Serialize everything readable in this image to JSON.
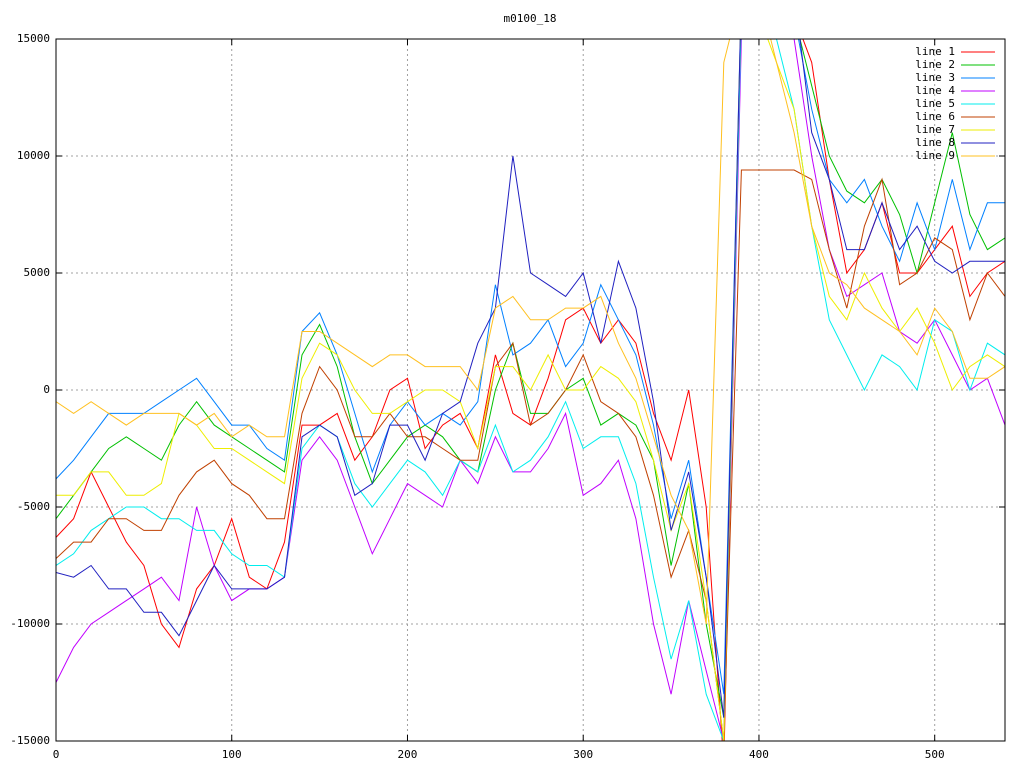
{
  "chart_data": {
    "type": "line",
    "title": "m0100_18",
    "x": [
      0,
      10,
      20,
      30,
      40,
      50,
      60,
      70,
      80,
      90,
      100,
      110,
      120,
      130,
      140,
      150,
      160,
      170,
      180,
      190,
      200,
      210,
      220,
      230,
      240,
      250,
      260,
      270,
      280,
      290,
      300,
      310,
      320,
      330,
      340,
      350,
      360,
      370,
      380,
      390,
      400,
      410,
      420,
      430,
      440,
      450,
      460,
      470,
      480,
      490,
      500,
      510,
      520,
      530,
      540
    ],
    "xlim": [
      0,
      540
    ],
    "xticks": [
      0,
      100,
      200,
      300,
      400,
      500
    ],
    "ylim": [
      -15000,
      15000
    ],
    "yticks": [
      -15000,
      -10000,
      -5000,
      0,
      5000,
      10000,
      15000
    ],
    "grid": true,
    "legend": "top-right",
    "series": [
      {
        "name": "line 1",
        "color": "#ff0000",
        "values": [
          -6300,
          -5500,
          -3500,
          -5000,
          -6500,
          -7500,
          -10000,
          -11000,
          -8500,
          -7500,
          -5500,
          -8000,
          -8500,
          -6500,
          -1500,
          -1500,
          -1000,
          -3000,
          -2000,
          0,
          500,
          -2500,
          -1500,
          -1000,
          -2500,
          1500,
          -1000,
          -1500,
          500,
          3000,
          3500,
          2000,
          3000,
          2000,
          -1000,
          -3000,
          0,
          -5000,
          -16000,
          16000,
          17000,
          16000,
          16000,
          14000,
          9000,
          5000,
          6000,
          8000,
          5000,
          5000,
          6000,
          7000,
          4000,
          5000,
          5500
        ]
      },
      {
        "name": "line 2",
        "color": "#00c000",
        "values": [
          -5500,
          -4500,
          -3500,
          -2500,
          -2000,
          -2500,
          -3000,
          -1500,
          -500,
          -1500,
          -2000,
          -2500,
          -3000,
          -3500,
          1500,
          2800,
          1000,
          -2000,
          -4000,
          -3000,
          -2000,
          -1500,
          -2000,
          -3000,
          -3500,
          0,
          2000,
          -1000,
          -1000,
          0,
          500,
          -1500,
          -1000,
          -1500,
          -3000,
          -7500,
          -4000,
          -10000,
          -14000,
          16000,
          17000,
          16500,
          16000,
          13000,
          10000,
          8500,
          8000,
          9000,
          7500,
          5000,
          8000,
          11000,
          7500,
          6000,
          6500
        ]
      },
      {
        "name": "line 3",
        "color": "#0080ff",
        "values": [
          -3800,
          -3000,
          -2000,
          -1000,
          -1000,
          -1000,
          -500,
          0,
          500,
          -500,
          -1500,
          -1500,
          -2500,
          -3000,
          2500,
          3300,
          1500,
          -1000,
          -3500,
          -1500,
          -500,
          -1500,
          -1000,
          -1500,
          -500,
          4500,
          1500,
          2000,
          3000,
          1000,
          2000,
          4500,
          3000,
          1500,
          -1500,
          -5500,
          -3000,
          -8000,
          -13000,
          17000,
          18000,
          17000,
          16000,
          12000,
          9000,
          8000,
          9000,
          7000,
          5500,
          8000,
          6000,
          9000,
          6000,
          8000,
          8000
        ]
      },
      {
        "name": "line 4",
        "color": "#c000ff",
        "values": [
          -12500,
          -11000,
          -10000,
          -9500,
          -9000,
          -8500,
          -8000,
          -9000,
          -5000,
          -7500,
          -9000,
          -8500,
          -8500,
          -8000,
          -3000,
          -2000,
          -3000,
          -5000,
          -7000,
          -5500,
          -4000,
          -4500,
          -5000,
          -3000,
          -4000,
          -2000,
          -3500,
          -3500,
          -2500,
          -1000,
          -4500,
          -4000,
          -3000,
          -5500,
          -10000,
          -13000,
          -9000,
          -12000,
          -15000,
          15000,
          17000,
          16500,
          15000,
          10000,
          6000,
          4000,
          4500,
          5000,
          2500,
          2000,
          3000,
          1500,
          0,
          500,
          -1500
        ]
      },
      {
        "name": "line 5",
        "color": "#00eeee",
        "values": [
          -7500,
          -7000,
          -6000,
          -5500,
          -5000,
          -5000,
          -5500,
          -5500,
          -6000,
          -6000,
          -7000,
          -7500,
          -7500,
          -8000,
          -2500,
          -1500,
          -2000,
          -4000,
          -5000,
          -4000,
          -3000,
          -3500,
          -4500,
          -3000,
          -3500,
          -1500,
          -3500,
          -3000,
          -2000,
          -500,
          -2500,
          -2000,
          -2000,
          -4000,
          -8000,
          -11500,
          -9000,
          -13000,
          -15000,
          16000,
          16000,
          15000,
          12000,
          7000,
          3000,
          1500,
          0,
          1500,
          1000,
          0,
          3000,
          2500,
          0,
          2000,
          1500
        ]
      },
      {
        "name": "line 6",
        "color": "#c04000",
        "values": [
          -7200,
          -6500,
          -6500,
          -5500,
          -5500,
          -6000,
          -6000,
          -4500,
          -3500,
          -3000,
          -4000,
          -4500,
          -5500,
          -5500,
          -1000,
          1000,
          0,
          -2000,
          -2000,
          -1000,
          -2000,
          -2000,
          -2500,
          -3000,
          -3000,
          1000,
          2000,
          -1500,
          -1000,
          0,
          1500,
          -500,
          -1000,
          -2000,
          -4500,
          -8000,
          -6000,
          -9000,
          -15000,
          9400,
          9400,
          9400,
          9400,
          9000,
          6000,
          3500,
          7000,
          9000,
          4500,
          5000,
          6500,
          6000,
          3000,
          5000,
          4000
        ]
      },
      {
        "name": "line 7",
        "color": "#eeee00",
        "values": [
          -4500,
          -4500,
          -3500,
          -3500,
          -4500,
          -4500,
          -4000,
          -1000,
          -1500,
          -2500,
          -2500,
          -3000,
          -3500,
          -4000,
          500,
          2000,
          1500,
          0,
          -1000,
          -1000,
          -500,
          0,
          0,
          -500,
          -2500,
          1000,
          1000,
          0,
          1500,
          0,
          0,
          1000,
          500,
          -500,
          -3000,
          -6000,
          -4000,
          -9000,
          -15000,
          17000,
          16000,
          14000,
          12000,
          7000,
          4000,
          3000,
          5000,
          3500,
          2500,
          3500,
          2000,
          0,
          1000,
          1500,
          1000
        ]
      },
      {
        "name": "line 8",
        "color": "#2020c0",
        "values": [
          -7800,
          -8000,
          -7500,
          -8500,
          -8500,
          -9500,
          -9500,
          -10500,
          -9000,
          -7500,
          -8500,
          -8500,
          -8500,
          -8000,
          -2000,
          -1500,
          -2000,
          -4500,
          -4000,
          -1500,
          -1500,
          -3000,
          -1000,
          -500,
          2000,
          3500,
          10000,
          5000,
          4500,
          4000,
          5000,
          2000,
          5500,
          3500,
          -500,
          -6000,
          -3500,
          -8000,
          -14000,
          17000,
          17000,
          16500,
          17000,
          11000,
          9000,
          6000,
          6000,
          8000,
          6000,
          7000,
          5500,
          5000,
          5500,
          5500,
          5500
        ]
      },
      {
        "name": "line 9",
        "color": "#ffc020",
        "values": [
          -500,
          -1000,
          -500,
          -1000,
          -1500,
          -1000,
          -1000,
          -1000,
          -1500,
          -1000,
          -2000,
          -1500,
          -2000,
          -2000,
          2500,
          2500,
          2000,
          1500,
          1000,
          1500,
          1500,
          1000,
          1000,
          1000,
          0,
          3500,
          4000,
          3000,
          3000,
          3500,
          3500,
          4000,
          2000,
          500,
          -2000,
          -4500,
          -6000,
          -10000,
          14000,
          17000,
          17000,
          14000,
          11000,
          7000,
          5000,
          4500,
          3500,
          3000,
          2500,
          1500,
          3500,
          2500,
          500,
          500,
          1000
        ]
      }
    ]
  }
}
